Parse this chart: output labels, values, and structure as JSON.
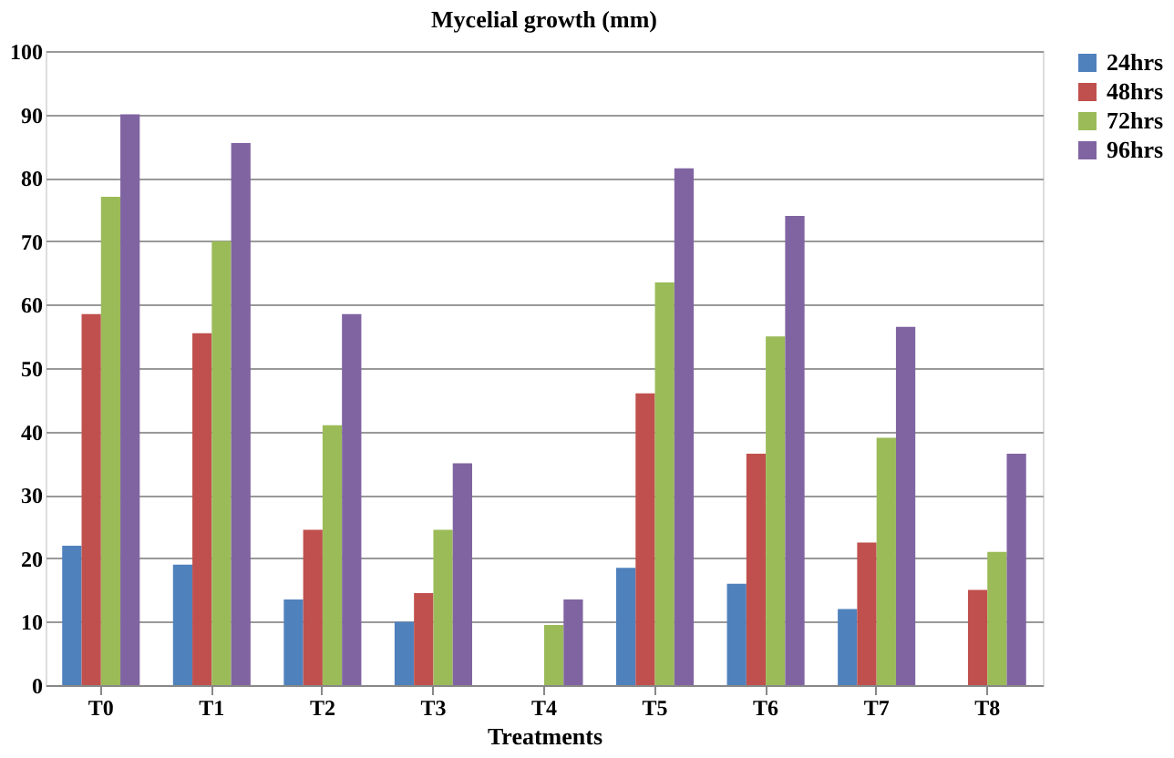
{
  "chart_data": {
    "type": "bar",
    "title": "Mycelial growth (mm)",
    "xlabel": "Treatments",
    "categories": [
      "T0",
      "T1",
      "T2",
      "T3",
      "T4",
      "T5",
      "T6",
      "T7",
      "T8"
    ],
    "series": [
      {
        "name": "24hrs",
        "color": "#4f81bd",
        "values": [
          22,
          19,
          13.5,
          10,
          0,
          18.5,
          16,
          12,
          0
        ]
      },
      {
        "name": "48hrs",
        "color": "#c0504d",
        "values": [
          58.5,
          55.5,
          24.5,
          14.5,
          0,
          46,
          36.5,
          22.5,
          15
        ]
      },
      {
        "name": "72hrs",
        "color": "#9bbb59",
        "values": [
          77,
          70,
          41,
          24.5,
          9.5,
          63.5,
          55,
          39,
          21
        ]
      },
      {
        "name": "96hrs",
        "color": "#8064a2",
        "values": [
          90,
          85.5,
          58.5,
          35,
          13.5,
          81.5,
          74,
          56.5,
          36.5
        ]
      }
    ],
    "ylim": [
      0,
      100
    ],
    "yticks": [
      0,
      10,
      20,
      30,
      40,
      50,
      60,
      70,
      80,
      90,
      100
    ],
    "grid": "y",
    "legend": "right"
  }
}
